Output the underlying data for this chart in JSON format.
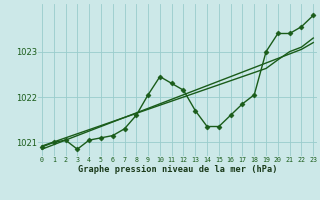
{
  "xlabel": "Graphe pression niveau de la mer (hPa)",
  "background_color": "#cce8e8",
  "grid_color": "#99cccc",
  "line_color": "#1a5c1a",
  "hours": [
    0,
    1,
    2,
    3,
    4,
    5,
    6,
    7,
    8,
    9,
    10,
    11,
    12,
    13,
    14,
    15,
    16,
    17,
    18,
    19,
    20,
    21,
    22,
    23
  ],
  "pressure_volatile": [
    1020.9,
    1021.0,
    1021.05,
    1020.85,
    1021.05,
    1021.1,
    1021.15,
    1021.3,
    1021.6,
    1022.05,
    1022.45,
    1022.3,
    1022.15,
    1021.7,
    1021.35,
    1021.35,
    1021.6,
    1021.85,
    1022.05,
    1023.0,
    1023.4,
    1023.4,
    1023.55,
    1023.8
  ],
  "pressure_smooth1": [
    1020.85,
    1020.95,
    1021.05,
    1021.15,
    1021.25,
    1021.35,
    1021.45,
    1021.55,
    1021.65,
    1021.75,
    1021.85,
    1021.95,
    1022.05,
    1022.15,
    1022.25,
    1022.35,
    1022.45,
    1022.55,
    1022.65,
    1022.75,
    1022.85,
    1022.95,
    1023.05,
    1023.2
  ],
  "pressure_smooth2": [
    1020.92,
    1021.01,
    1021.1,
    1021.19,
    1021.28,
    1021.37,
    1021.46,
    1021.55,
    1021.64,
    1021.73,
    1021.82,
    1021.91,
    1022.0,
    1022.09,
    1022.18,
    1022.27,
    1022.36,
    1022.45,
    1022.54,
    1022.63,
    1022.82,
    1023.0,
    1023.1,
    1023.3
  ],
  "ylim_min": 1020.7,
  "ylim_max": 1024.05,
  "yticks": [
    1021,
    1022,
    1023
  ],
  "marker": "D",
  "markersize": 2.5,
  "linewidth": 1.0
}
